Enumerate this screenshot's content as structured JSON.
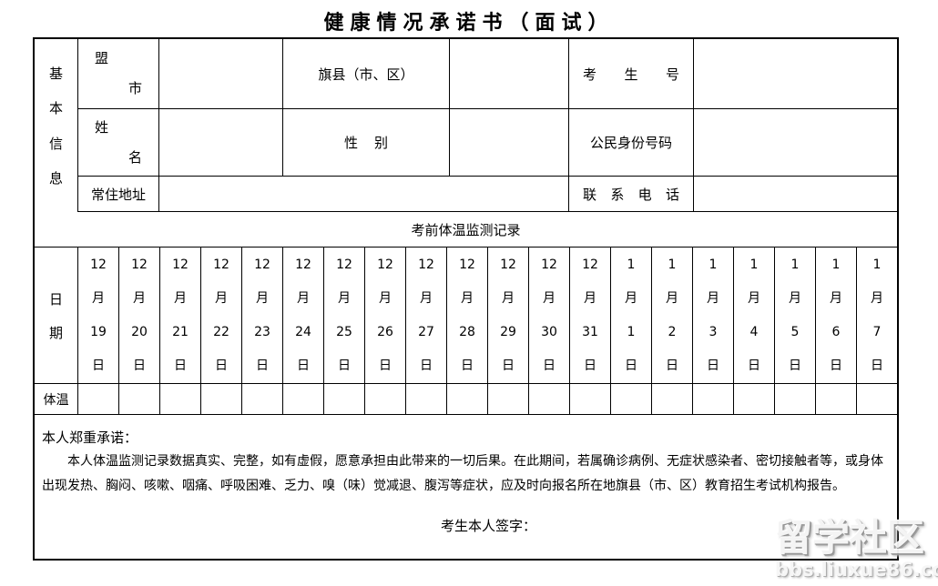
{
  "title": "健康情况承诺书（面试）",
  "basic_info": {
    "section_chars": [
      "基",
      "本",
      "信",
      "息"
    ],
    "rows": {
      "r1": {
        "league_chars": [
          "盟",
          "市"
        ],
        "banner_label": "旗县（市、区）",
        "candidate_no_chars": [
          "考",
          "生",
          "号"
        ]
      },
      "r2": {
        "name_chars": [
          "姓",
          "名"
        ],
        "gender_label": "性别",
        "id_label": "公民身份号码"
      },
      "r3": {
        "address_label": "常住地址",
        "phone_chars": [
          "联",
          "系",
          "电",
          "话"
        ]
      }
    }
  },
  "monitor_title": "考前体温监测记录",
  "date_section": {
    "label_chars": [
      "日",
      "期"
    ],
    "month_unit": "月",
    "day_unit": "日",
    "temp_label": "体温",
    "dates": [
      {
        "month": "12",
        "day": "19"
      },
      {
        "month": "12",
        "day": "20"
      },
      {
        "month": "12",
        "day": "21"
      },
      {
        "month": "12",
        "day": "22"
      },
      {
        "month": "12",
        "day": "23"
      },
      {
        "month": "12",
        "day": "24"
      },
      {
        "month": "12",
        "day": "25"
      },
      {
        "month": "12",
        "day": "26"
      },
      {
        "month": "12",
        "day": "27"
      },
      {
        "month": "12",
        "day": "28"
      },
      {
        "month": "12",
        "day": "29"
      },
      {
        "month": "12",
        "day": "30"
      },
      {
        "month": "12",
        "day": "31"
      },
      {
        "month": "1",
        "day": "1"
      },
      {
        "month": "1",
        "day": "2"
      },
      {
        "month": "1",
        "day": "3"
      },
      {
        "month": "1",
        "day": "4"
      },
      {
        "month": "1",
        "day": "5"
      },
      {
        "month": "1",
        "day": "6"
      },
      {
        "month": "1",
        "day": "7"
      }
    ],
    "temps": [
      "",
      "",
      "",
      "",
      "",
      "",
      "",
      "",
      "",
      "",
      "",
      "",
      "",
      "",
      "",
      "",
      "",
      "",
      "",
      ""
    ]
  },
  "pledge": {
    "heading": "本人郑重承诺：",
    "lines": [
      "本人体温监测记录数据真实、完整，如有虚假，愿意承担由此带来的一切后果。在此期间，若属确诊病例、无症状感染者、密切接触者等，或身体",
      "出现发热、胸闷、咳嗽、咽痛、呼吸困难、乏力、嗅（味）觉减退、腹泻等症状，应及时向报名所在地旗县（市、区）教育招生考试机构报告。"
    ],
    "signature_label": "考生本人签字："
  },
  "watermark": {
    "text": "留学社区",
    "url": "bbs.liuxue86.com"
  },
  "colors": {
    "border": "#000000",
    "background": "#ffffff",
    "watermark_fill": "#f4f4f4",
    "watermark_shadow": "#9a9a9a"
  }
}
